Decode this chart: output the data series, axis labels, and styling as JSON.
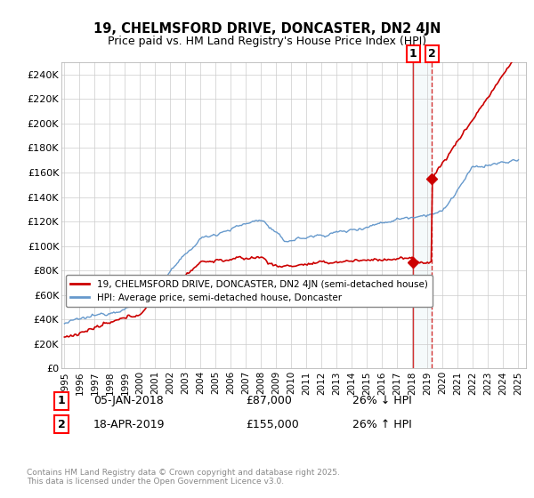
{
  "title": "19, CHELMSFORD DRIVE, DONCASTER, DN2 4JN",
  "subtitle": "Price paid vs. HM Land Registry's House Price Index (HPI)",
  "ylim": [
    0,
    250000
  ],
  "yticks": [
    0,
    20000,
    40000,
    60000,
    80000,
    100000,
    120000,
    140000,
    160000,
    180000,
    200000,
    220000,
    240000
  ],
  "ytick_labels": [
    "£0",
    "£20K",
    "£40K",
    "£60K",
    "£80K",
    "£100K",
    "£120K",
    "£140K",
    "£160K",
    "£180K",
    "£200K",
    "£220K",
    "£240K"
  ],
  "legend1_label": "19, CHELMSFORD DRIVE, DONCASTER, DN2 4JN (semi-detached house)",
  "legend2_label": "HPI: Average price, semi-detached house, Doncaster",
  "sale1_date": "05-JAN-2018",
  "sale1_price": "£87,000",
  "sale1_hpi": "26% ↓ HPI",
  "sale2_date": "18-APR-2019",
  "sale2_price": "£155,000",
  "sale2_hpi": "26% ↑ HPI",
  "copyright": "Contains HM Land Registry data © Crown copyright and database right 2025.\nThis data is licensed under the Open Government Licence v3.0.",
  "line_color_red": "#cc0000",
  "line_color_blue": "#6699cc",
  "sale1_year": 2018.04,
  "sale2_year": 2019.29,
  "sale1_price_val": 87000,
  "sale2_price_val": 155000
}
